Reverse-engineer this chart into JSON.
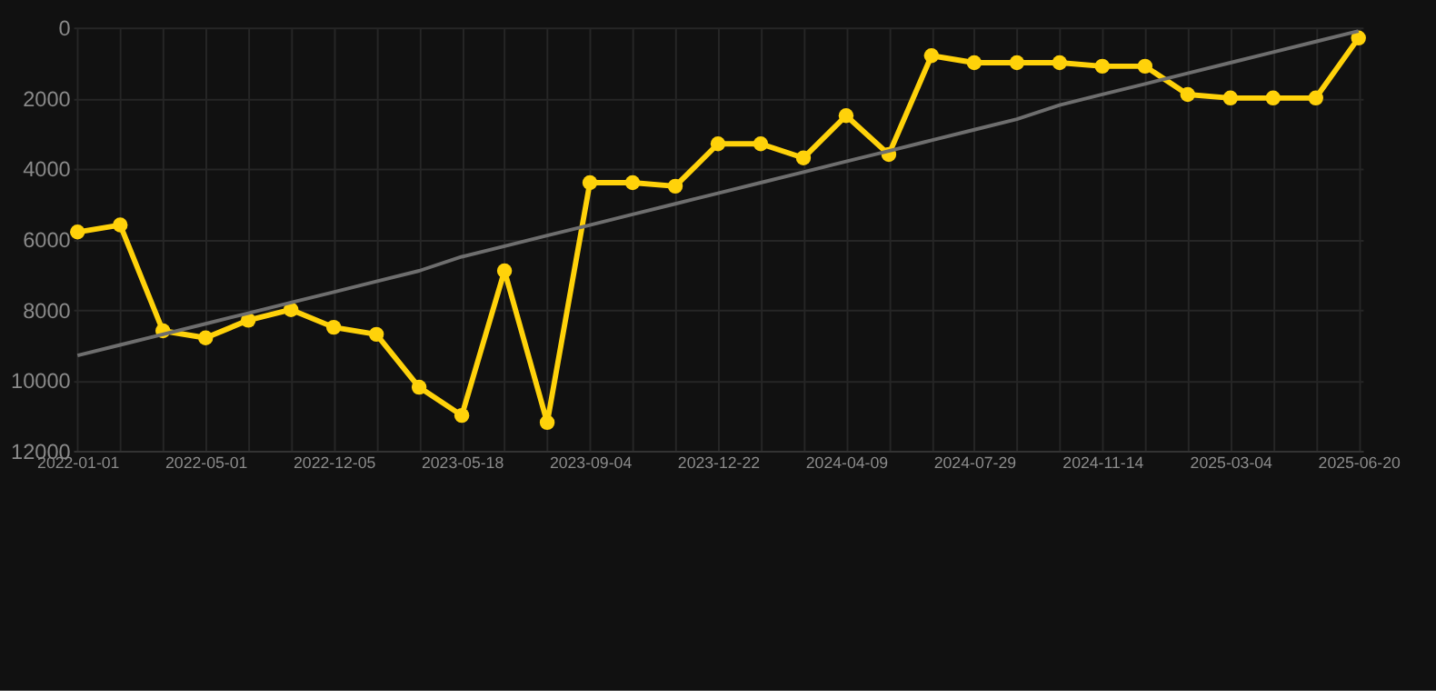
{
  "chart_data": {
    "type": "line",
    "categories": [
      "2022-01-01",
      null,
      null,
      "2022-05-01",
      null,
      null,
      "2022-12-05",
      null,
      null,
      "2023-05-18",
      null,
      null,
      "2023-09-04",
      null,
      null,
      "2023-12-22",
      null,
      null,
      "2024-04-09",
      null,
      null,
      "2024-07-29",
      null,
      null,
      "2024-11-14",
      null,
      null,
      "2025-03-04",
      null,
      null,
      "2025-06-20"
    ],
    "series": [
      {
        "color": "#ffd20a",
        "marker": "circle",
        "values": [
          5800,
          5600,
          8600,
          8800,
          8300,
          8000,
          8500,
          8700,
          10200,
          11000,
          6900,
          11200,
          4400,
          4400,
          4500,
          3300,
          3300,
          3700,
          2500,
          3600,
          800,
          1000,
          1000,
          1000,
          1100,
          1100,
          1900,
          2000,
          2000,
          2000,
          300
        ]
      },
      {
        "type": "line",
        "color": "#6e6e6e",
        "marker": "none",
        "values": [
          9300,
          9000,
          8700,
          8400,
          8100,
          7800,
          7500,
          7200,
          6900,
          6500,
          6200,
          5900,
          5600,
          5300,
          5000,
          4700,
          4400,
          4100,
          3800,
          3500,
          3200,
          2900,
          2600,
          2200,
          1900,
          1600,
          1300,
          1000,
          700,
          400,
          100
        ]
      }
    ],
    "ylim": [
      12000,
      0
    ],
    "yticks": [
      0,
      2000,
      4000,
      6000,
      8000,
      10000,
      12000
    ],
    "grid": true,
    "legend": false
  }
}
